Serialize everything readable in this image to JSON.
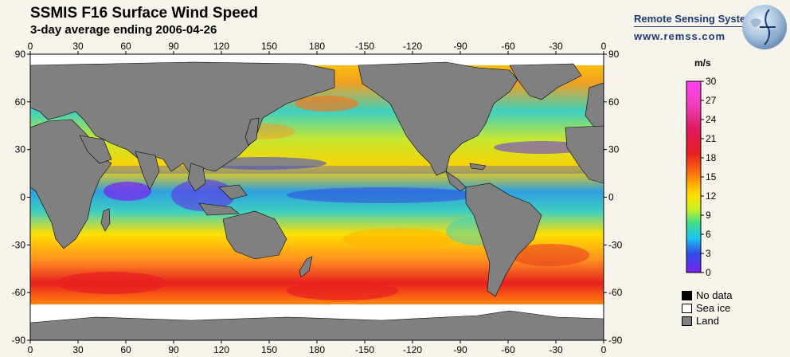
{
  "header": {
    "title": "SSMIS F16 Surface Wind Speed",
    "subtitle": "3-day average ending 2006-04-26"
  },
  "brand": {
    "name": "Remote Sensing Systems",
    "url": "www.remss.com",
    "logo_icon": "globe-icon"
  },
  "map": {
    "lon_ticks": [
      "0",
      "30",
      "60",
      "90",
      "120",
      "150",
      "180",
      "-150",
      "-120",
      "-90",
      "-60",
      "-30",
      "0"
    ],
    "lat_ticks": [
      "90",
      "60",
      "30",
      "0",
      "-30",
      "-60",
      "-90"
    ],
    "colors": {
      "land": "#808080",
      "sea_ice": "#ffffff",
      "no_data": "#000000"
    }
  },
  "colorbar": {
    "unit": "m/s",
    "ticks": [
      "30",
      "27",
      "24",
      "21",
      "18",
      "15",
      "12",
      "9",
      "6",
      "3",
      "0"
    ],
    "scale_colors": [
      "#7b1ff0",
      "#2f4fe6",
      "#19c4f0",
      "#3fe08a",
      "#c8f020",
      "#ffe000",
      "#ffb000",
      "#ff7010",
      "#e82020",
      "#e01860",
      "#f040c0",
      "#ff40f0"
    ]
  },
  "legend": [
    {
      "label": "No data",
      "color": "#000000"
    },
    {
      "label": "Sea ice",
      "color": "#ffffff"
    },
    {
      "label": "Land",
      "color": "#808080"
    }
  ]
}
